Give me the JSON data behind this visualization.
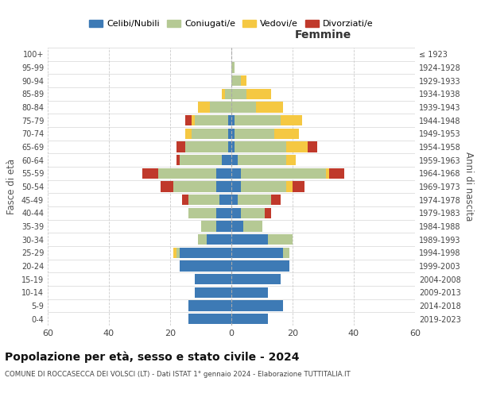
{
  "age_groups": [
    "0-4",
    "5-9",
    "10-14",
    "15-19",
    "20-24",
    "25-29",
    "30-34",
    "35-39",
    "40-44",
    "45-49",
    "50-54",
    "55-59",
    "60-64",
    "65-69",
    "70-74",
    "75-79",
    "80-84",
    "85-89",
    "90-94",
    "95-99",
    "100+"
  ],
  "birth_years": [
    "2019-2023",
    "2014-2018",
    "2009-2013",
    "2004-2008",
    "1999-2003",
    "1994-1998",
    "1989-1993",
    "1984-1988",
    "1979-1983",
    "1974-1978",
    "1969-1973",
    "1964-1968",
    "1959-1963",
    "1954-1958",
    "1949-1953",
    "1944-1948",
    "1939-1943",
    "1934-1938",
    "1929-1933",
    "1924-1928",
    "≤ 1923"
  ],
  "colors": {
    "celibi": "#3d7ab5",
    "coniugati": "#b5c994",
    "vedovi": "#f5c842",
    "divorziati": "#c0392b"
  },
  "males": {
    "celibi": [
      14,
      14,
      12,
      12,
      17,
      17,
      8,
      5,
      5,
      4,
      5,
      5,
      3,
      1,
      1,
      1,
      0,
      0,
      0,
      0,
      0
    ],
    "coniugati": [
      0,
      0,
      0,
      0,
      0,
      1,
      3,
      5,
      9,
      10,
      14,
      19,
      14,
      14,
      12,
      11,
      7,
      2,
      0,
      0,
      0
    ],
    "vedovi": [
      0,
      0,
      0,
      0,
      0,
      1,
      0,
      0,
      0,
      0,
      0,
      0,
      0,
      0,
      2,
      1,
      4,
      1,
      0,
      0,
      0
    ],
    "divorziati": [
      0,
      0,
      0,
      0,
      0,
      0,
      0,
      0,
      0,
      2,
      4,
      5,
      1,
      3,
      0,
      2,
      0,
      0,
      0,
      0,
      0
    ]
  },
  "females": {
    "celibi": [
      12,
      17,
      12,
      16,
      19,
      17,
      12,
      4,
      3,
      2,
      3,
      3,
      2,
      1,
      1,
      1,
      0,
      0,
      0,
      0,
      0
    ],
    "coniugati": [
      0,
      0,
      0,
      0,
      0,
      2,
      8,
      6,
      8,
      11,
      15,
      28,
      16,
      17,
      13,
      15,
      8,
      5,
      3,
      1,
      0
    ],
    "vedovi": [
      0,
      0,
      0,
      0,
      0,
      0,
      0,
      0,
      0,
      0,
      2,
      1,
      3,
      7,
      8,
      7,
      9,
      8,
      2,
      0,
      0
    ],
    "divorziati": [
      0,
      0,
      0,
      0,
      0,
      0,
      0,
      0,
      2,
      3,
      4,
      5,
      0,
      3,
      0,
      0,
      0,
      0,
      0,
      0,
      0
    ]
  },
  "xlim": 60,
  "title": "Popolazione per età, sesso e stato civile - 2024",
  "subtitle": "COMUNE DI ROCCASECCA DEI VOLSCI (LT) - Dati ISTAT 1° gennaio 2024 - Elaborazione TUTTITALIA.IT",
  "ylabel_left": "Fasce di età",
  "ylabel_right": "Anni di nascita",
  "xlabel_female": "Femmine",
  "legend_labels": [
    "Celibi/Nubili",
    "Coniugati/e",
    "Vedovi/e",
    "Divorziati/e"
  ],
  "bg_color": "#ffffff",
  "grid_color": "#cccccc"
}
